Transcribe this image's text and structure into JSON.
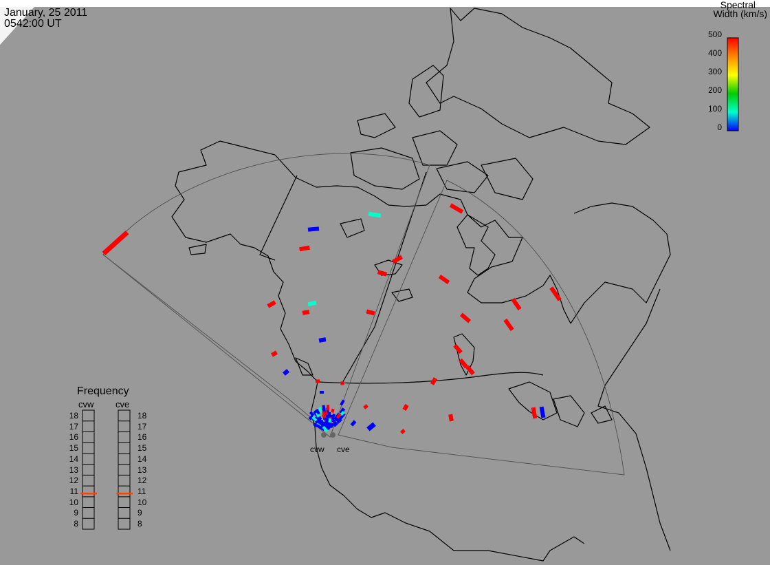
{
  "header": {
    "date": "January, 25 2011",
    "time": "0542:00 UT"
  },
  "colorbar": {
    "title_line1": "Spectral",
    "title_line2": "Width (km/s)",
    "ticks": [
      "500",
      "400",
      "300",
      "200",
      "100",
      "0"
    ],
    "colors": [
      "#ff0000",
      "#ff8800",
      "#ffff00",
      "#00cc00",
      "#00ffcc",
      "#0000ff"
    ]
  },
  "frequency_panel": {
    "title": "Frequency",
    "radar_left": "cvw",
    "radar_right": "cve",
    "ticks": [
      "18",
      "17",
      "16",
      "15",
      "14",
      "13",
      "12",
      "11",
      "10",
      "9",
      "8"
    ],
    "cvw_mhz": 10.8,
    "cve_mhz": 10.8,
    "indicator_color": "#ff4400"
  },
  "radars": [
    {
      "name": "cvw"
    },
    {
      "name": "cve"
    }
  ],
  "colors": {
    "background": "#999999",
    "coast": "#000000",
    "fov_outline": "#555555",
    "high_width": "#ff0000",
    "low_width": "#0000ff",
    "mid_width": "#00ffcc"
  }
}
